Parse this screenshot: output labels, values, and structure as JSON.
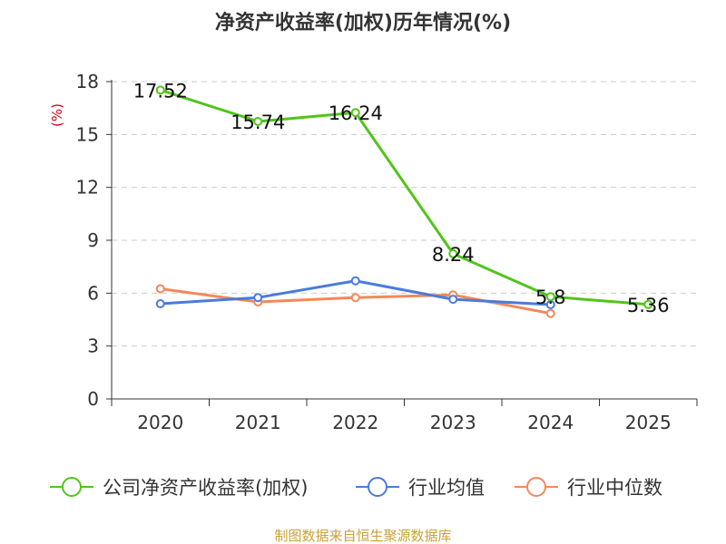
{
  "chart_data": {
    "type": "line",
    "title": "净资产收益率(加权)历年情况(%)",
    "ylabel": "(%)",
    "xlabel": "",
    "categories": [
      "2020",
      "2021",
      "2022",
      "2023",
      "2024",
      "2025"
    ],
    "ylim": [
      0,
      18
    ],
    "yticks": [
      0,
      3,
      6,
      9,
      12,
      15,
      18
    ],
    "grid": true,
    "legend_position": "bottom",
    "series": [
      {
        "name": "公司净资产收益率(加权)",
        "color": "#52c41a",
        "values": [
          17.52,
          15.74,
          16.24,
          8.24,
          5.8,
          5.36
        ],
        "labels": [
          "17.52",
          "15.74",
          "16.24",
          "8.24",
          "5.8",
          "5.36"
        ]
      },
      {
        "name": "行业均值",
        "color": "#4a7bdc",
        "values": [
          5.4,
          5.75,
          6.7,
          5.65,
          5.35,
          null
        ]
      },
      {
        "name": "行业中位数",
        "color": "#f4885a",
        "values": [
          6.25,
          5.5,
          5.75,
          5.9,
          4.85,
          null
        ]
      }
    ],
    "source": "制图数据来自恒生聚源数据库",
    "ylabel_color": "#d9001b",
    "source_color": "#c8a236"
  }
}
